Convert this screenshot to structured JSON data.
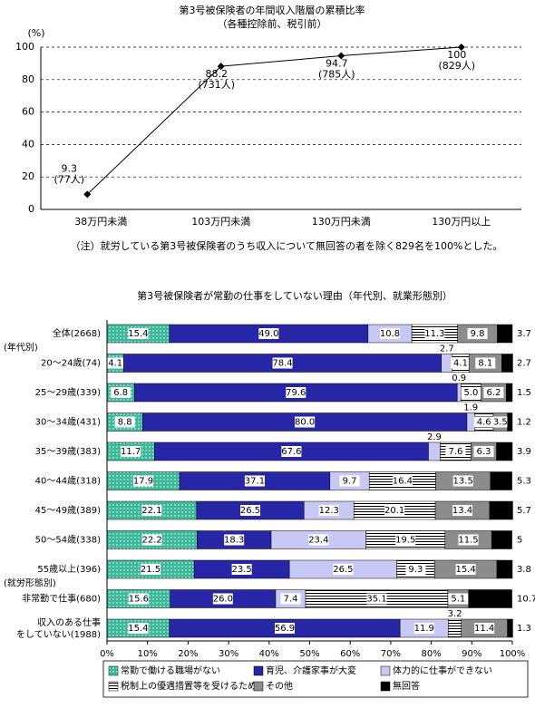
{
  "chart_data": [
    {
      "type": "line",
      "title": "第3号被保険者の年間収入階層の累積比率",
      "subtitle": "（各種控除前、税引前）",
      "y_label": "(%)",
      "categories": [
        "38万円未満",
        "103万円未満",
        "130万円未満",
        "130万円以上"
      ],
      "values": [
        9.3,
        88.2,
        94.7,
        100
      ],
      "point_notes": [
        "(77人)",
        "(731人)",
        "(785人)",
        "(829人)"
      ],
      "color": "#000000",
      "ylim": [
        0,
        100
      ],
      "yticks": [
        0,
        20,
        40,
        60,
        80,
        100
      ],
      "grid": true,
      "note": "（注）就労している第3号被保険者のうち収入について無回答の者を除く829名を100%とした。"
    },
    {
      "type": "bar",
      "orientation": "horizontal",
      "stacked": true,
      "title": "第3号被保険者が常勤の仕事をしていない理由（年代別、就業形態別）",
      "categories": [
        "全体(2668)",
        "20～24歳(74)",
        "25～29歳(339)",
        "30～34歳(431)",
        "35～39歳(383)",
        "40～44歳(318)",
        "45～49歳(389)",
        "50～54歳(338)",
        "55歳以上(396)",
        "非常勤で仕事(680)",
        "収入のある仕事\nをしていない(1988)"
      ],
      "group_labels": [
        "(年代別)",
        "(就労形態別)"
      ],
      "series": [
        {
          "name": "常勤で働ける職場がない",
          "color": "#3cb89a",
          "pattern": "dots",
          "values": [
            15.4,
            4.1,
            6.8,
            8.8,
            11.7,
            17.9,
            22.1,
            22.2,
            21.5,
            15.6,
            15.4
          ]
        },
        {
          "name": "育児、介護家事が大変",
          "color": "#2626a6",
          "values": [
            49.0,
            78.4,
            79.6,
            80.0,
            67.6,
            37.1,
            26.5,
            18.3,
            23.5,
            26.0,
            56.9
          ],
          "value_labels": [
            "49.0",
            "78.4",
            "79.6",
            "80.0",
            "67.6",
            "37.1",
            "26.5",
            "18.3",
            "23.5",
            "26.0",
            "56.9"
          ]
        },
        {
          "name": "体力的に仕事ができない",
          "color": "#c8c8f4",
          "values": [
            10.8,
            2.7,
            0.9,
            1.9,
            2.9,
            9.7,
            12.3,
            23.4,
            26.5,
            7.4,
            11.9
          ]
        },
        {
          "name": "税制上の優遇措置等を受けるため",
          "color": "#000000",
          "pattern": "stripes",
          "values": [
            11.3,
            4.1,
            5.0,
            4.6,
            7.6,
            16.4,
            20.1,
            19.5,
            9.3,
            35.1,
            3.2
          ],
          "value_labels": [
            "11.3",
            "4.1",
            "5.0",
            "4.6",
            "7.6",
            "16.4",
            "20.1",
            "19.5",
            "9.3",
            "35.1",
            "3.2"
          ]
        },
        {
          "name": "その他",
          "color": "#8c8c8c",
          "values": [
            9.8,
            8.1,
            6.2,
            3.5,
            6.3,
            13.5,
            13.4,
            11.5,
            15.4,
            5.1,
            11.4
          ]
        },
        {
          "name": "無回答",
          "color": "#000000",
          "values": [
            3.7,
            2.7,
            1.5,
            1.2,
            3.9,
            5.3,
            5.7,
            5.0,
            3.8,
            10.7,
            1.3
          ]
        }
      ],
      "xlim": [
        0,
        100
      ],
      "xticks": [
        {
          "value": 0,
          "label": "0%"
        },
        {
          "value": 10,
          "label": "10%"
        },
        {
          "value": 20,
          "label": "20%"
        },
        {
          "value": 30,
          "label": "30%"
        },
        {
          "value": 40,
          "label": "40%"
        },
        {
          "value": 50,
          "label": "50%"
        },
        {
          "value": 60,
          "label": "60%"
        },
        {
          "value": 70,
          "label": "70%"
        },
        {
          "value": 80,
          "label": "80%"
        },
        {
          "value": 90,
          "label": "90%"
        },
        {
          "value": 100,
          "label": "100%"
        }
      ]
    }
  ]
}
